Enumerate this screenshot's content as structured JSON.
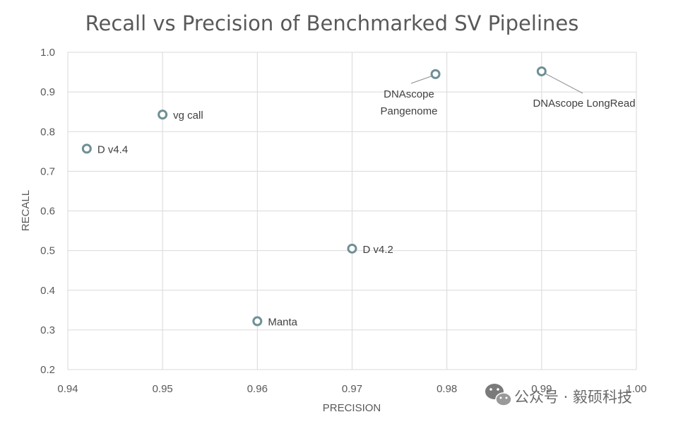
{
  "chart_data": {
    "type": "scatter",
    "title": "Recall vs Precision of Benchmarked SV Pipelines",
    "xlabel": "PRECISION",
    "ylabel": "RECALL",
    "xlim": [
      0.94,
      1.0
    ],
    "ylim": [
      0.2,
      1.0
    ],
    "x_ticks": [
      "0.94",
      "0.95",
      "0.96",
      "0.97",
      "0.98",
      "0.99",
      "1.00"
    ],
    "y_ticks": [
      "0.2",
      "0.3",
      "0.4",
      "0.5",
      "0.6",
      "0.7",
      "0.8",
      "0.9",
      "1.0"
    ],
    "grid": true,
    "marker_color": "#6e8f96",
    "points": [
      {
        "label": "D v4.4",
        "x": 0.942,
        "y": 0.757
      },
      {
        "label": "vg call",
        "x": 0.95,
        "y": 0.843
      },
      {
        "label": "Manta",
        "x": 0.96,
        "y": 0.322
      },
      {
        "label": "D v4.2",
        "x": 0.97,
        "y": 0.505
      },
      {
        "label": "DNAscope Pangenome",
        "x": 0.9788,
        "y": 0.945
      },
      {
        "label": "DNAscope LongRead",
        "x": 0.99,
        "y": 0.952
      }
    ]
  },
  "watermark": {
    "text": "公众号 · 毅硕科技",
    "icon": "wechat-icon"
  }
}
